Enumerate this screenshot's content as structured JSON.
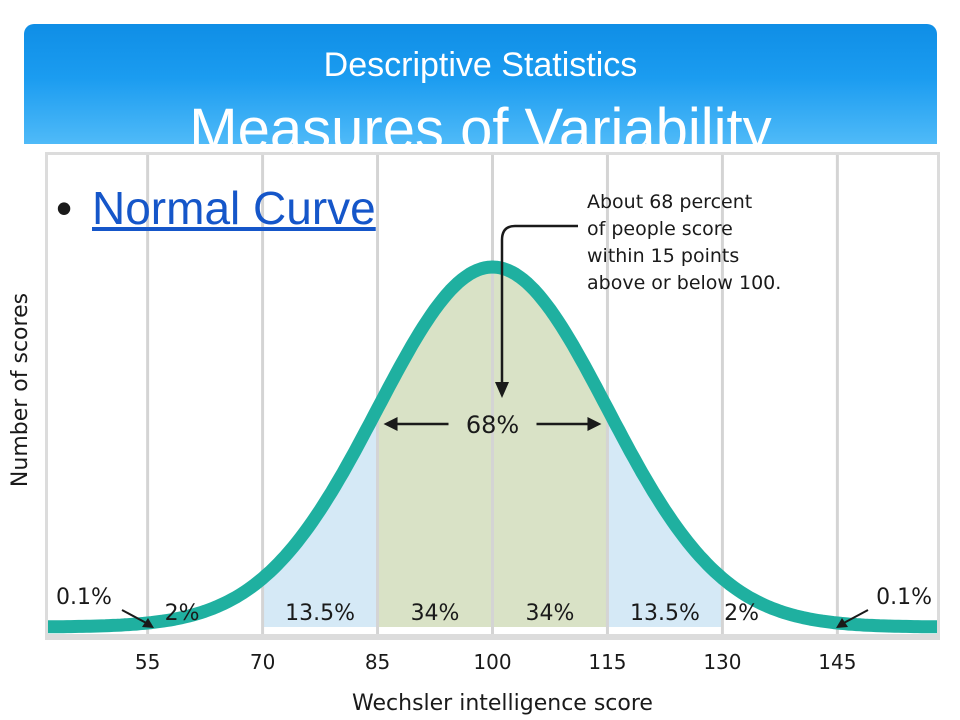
{
  "header": {
    "subtitle": "Descriptive Statistics",
    "title": "Measures of Variability"
  },
  "bullet": {
    "marker": "•",
    "link_text": "Normal Curve"
  },
  "colors": {
    "banner": "#1b9cf0",
    "curve": "#1fb0a0",
    "band_outer": "#d5e9f6",
    "band_inner": "#d9e2c6",
    "grid": "#d4d4d4",
    "axis_bg": "#dcdcdc"
  },
  "chart_data": {
    "type": "area",
    "xlabel": "Wechsler intelligence score",
    "ylabel": "Number of scores",
    "xlim": [
      42,
      158
    ],
    "x_ticks": [
      55,
      70,
      85,
      100,
      115,
      130,
      145
    ],
    "distribution": {
      "mean": 100,
      "sd": 15
    },
    "regions": [
      {
        "from": 42,
        "to": 55,
        "label": "0.1%"
      },
      {
        "from": 55,
        "to": 70,
        "label": "2%"
      },
      {
        "from": 70,
        "to": 85,
        "label": "13.5%"
      },
      {
        "from": 85,
        "to": 100,
        "label": "34%"
      },
      {
        "from": 100,
        "to": 115,
        "label": "34%"
      },
      {
        "from": 115,
        "to": 130,
        "label": "13.5%"
      },
      {
        "from": 130,
        "to": 145,
        "label": "2%"
      },
      {
        "from": 145,
        "to": 158,
        "label": "0.1%"
      }
    ],
    "center_span": {
      "from": 85,
      "to": 115,
      "label": "68%"
    },
    "annotation": "About 68 percent\nof people score\nwithin 15 points\nabove or below 100."
  }
}
